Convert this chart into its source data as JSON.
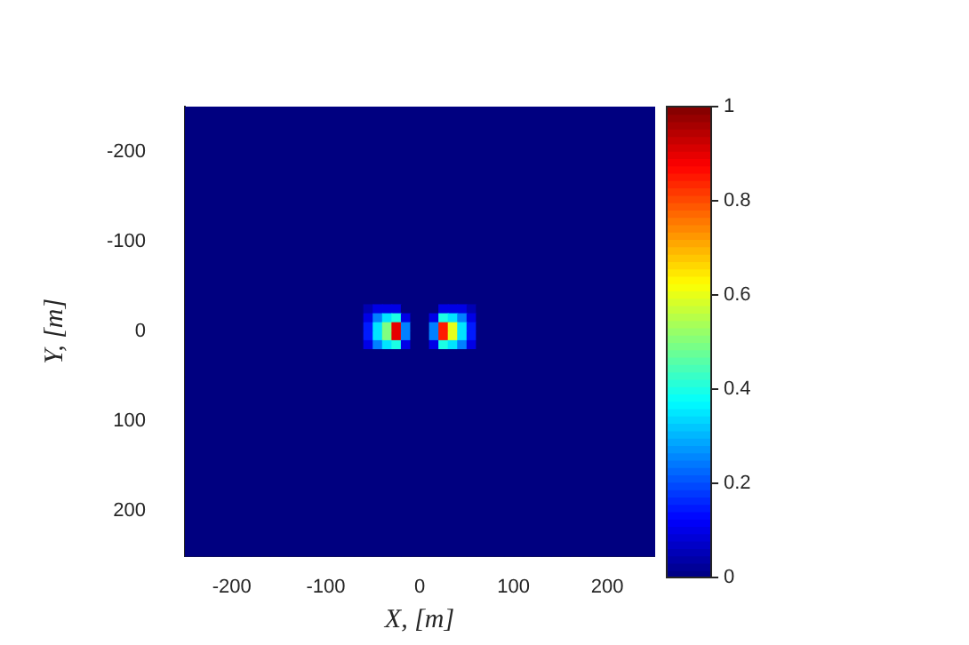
{
  "chart_data": {
    "type": "heatmap",
    "xlabel": "X, [m]",
    "ylabel": "Y, [m]",
    "x": [
      -245,
      -235,
      -225,
      -215,
      -205,
      -195,
      -185,
      -175,
      -165,
      -155,
      -145,
      -135,
      -125,
      -115,
      -105,
      -95,
      -85,
      -75,
      -65,
      -55,
      -45,
      -35,
      -25,
      -15,
      -5,
      5,
      15,
      25,
      35,
      45,
      55,
      65,
      75,
      85,
      95,
      105,
      115,
      125,
      135,
      145,
      155,
      165,
      175,
      185,
      195,
      205,
      215,
      225,
      235,
      245
    ],
    "y": [
      -245,
      -235,
      -225,
      -215,
      -205,
      -195,
      -185,
      -175,
      -165,
      -155,
      -145,
      -135,
      -125,
      -115,
      -105,
      -95,
      -85,
      -75,
      -65,
      -55,
      -45,
      -35,
      -25,
      -15,
      -5,
      5,
      15,
      25,
      35,
      45,
      55,
      65,
      75,
      85,
      95,
      105,
      115,
      125,
      135,
      145,
      155,
      165,
      175,
      185,
      195,
      205,
      215,
      225,
      235,
      245
    ],
    "xlim": [
      -250,
      250
    ],
    "xticks": [
      -200,
      -100,
      0,
      100,
      200
    ],
    "ylim": [
      250,
      -250
    ],
    "yticks": [
      -200,
      -100,
      0,
      100,
      200
    ],
    "clim": [
      0,
      1
    ],
    "cticks": [
      0,
      0.2,
      0.4,
      0.6,
      0.8,
      1
    ],
    "grid": false,
    "cells": [
      [
        0,
        0,
        0,
        0,
        0,
        0,
        0,
        0,
        0,
        0,
        0,
        0,
        0,
        0,
        0,
        0,
        0,
        0,
        0,
        0,
        0,
        0,
        0,
        0,
        0,
        0,
        0,
        0,
        0,
        0,
        0,
        0,
        0,
        0,
        0,
        0,
        0,
        0,
        0,
        0,
        0,
        0,
        0,
        0,
        0,
        0,
        0,
        0,
        0,
        0
      ],
      [
        0,
        0,
        0,
        0,
        0,
        0,
        0,
        0,
        0,
        0,
        0,
        0,
        0,
        0,
        0,
        0,
        0,
        0,
        0,
        0,
        0,
        0,
        0,
        0,
        0,
        0,
        0,
        0,
        0,
        0,
        0,
        0,
        0,
        0,
        0,
        0,
        0,
        0,
        0,
        0,
        0,
        0,
        0,
        0,
        0,
        0,
        0,
        0,
        0,
        0
      ],
      [
        0,
        0,
        0,
        0,
        0,
        0,
        0,
        0,
        0,
        0,
        0,
        0,
        0,
        0,
        0,
        0,
        0,
        0,
        0,
        0,
        0,
        0,
        0,
        0,
        0,
        0,
        0,
        0,
        0,
        0,
        0,
        0,
        0,
        0,
        0,
        0,
        0,
        0,
        0,
        0,
        0,
        0,
        0,
        0,
        0,
        0,
        0,
        0,
        0,
        0
      ],
      [
        0,
        0,
        0,
        0,
        0,
        0,
        0,
        0,
        0,
        0,
        0,
        0,
        0,
        0,
        0,
        0,
        0,
        0,
        0,
        0,
        0,
        0,
        0,
        0,
        0,
        0,
        0,
        0,
        0,
        0,
        0,
        0,
        0,
        0,
        0,
        0,
        0,
        0,
        0,
        0,
        0,
        0,
        0,
        0,
        0,
        0,
        0,
        0,
        0,
        0
      ],
      [
        0,
        0,
        0,
        0,
        0,
        0,
        0,
        0,
        0,
        0,
        0,
        0,
        0,
        0,
        0,
        0,
        0,
        0,
        0,
        0,
        0,
        0,
        0,
        0,
        0,
        0,
        0,
        0,
        0,
        0,
        0,
        0,
        0,
        0,
        0,
        0,
        0,
        0,
        0,
        0,
        0,
        0,
        0,
        0,
        0,
        0,
        0,
        0,
        0,
        0
      ],
      [
        0,
        0,
        0,
        0,
        0,
        0,
        0,
        0,
        0,
        0,
        0,
        0,
        0,
        0,
        0,
        0,
        0,
        0,
        0,
        0,
        0,
        0,
        0,
        0,
        0,
        0,
        0,
        0,
        0,
        0,
        0,
        0,
        0,
        0,
        0,
        0,
        0,
        0,
        0,
        0,
        0,
        0,
        0,
        0,
        0,
        0,
        0,
        0,
        0,
        0
      ],
      [
        0,
        0,
        0,
        0,
        0,
        0,
        0,
        0,
        0,
        0,
        0,
        0,
        0,
        0,
        0,
        0,
        0,
        0,
        0,
        0,
        0,
        0,
        0,
        0,
        0,
        0,
        0,
        0,
        0,
        0,
        0,
        0,
        0,
        0,
        0,
        0,
        0,
        0,
        0,
        0,
        0,
        0,
        0,
        0,
        0,
        0,
        0,
        0,
        0,
        0
      ],
      [
        0,
        0,
        0,
        0,
        0,
        0,
        0,
        0,
        0,
        0,
        0,
        0,
        0,
        0,
        0,
        0,
        0,
        0,
        0,
        0,
        0,
        0,
        0,
        0,
        0,
        0,
        0,
        0,
        0,
        0,
        0,
        0,
        0,
        0,
        0,
        0,
        0,
        0,
        0,
        0,
        0,
        0,
        0,
        0,
        0,
        0,
        0,
        0,
        0,
        0
      ],
      [
        0,
        0,
        0,
        0,
        0,
        0,
        0,
        0,
        0,
        0,
        0,
        0,
        0,
        0,
        0,
        0,
        0,
        0,
        0,
        0,
        0,
        0,
        0,
        0,
        0,
        0,
        0,
        0,
        0,
        0,
        0,
        0,
        0,
        0,
        0,
        0,
        0,
        0,
        0,
        0,
        0,
        0,
        0,
        0,
        0,
        0,
        0,
        0,
        0,
        0
      ],
      [
        0,
        0,
        0,
        0,
        0,
        0,
        0,
        0,
        0,
        0,
        0,
        0,
        0,
        0,
        0,
        0,
        0,
        0,
        0,
        0,
        0,
        0,
        0,
        0,
        0,
        0,
        0,
        0,
        0,
        0,
        0,
        0,
        0,
        0,
        0,
        0,
        0,
        0,
        0,
        0,
        0,
        0,
        0,
        0,
        0,
        0,
        0,
        0,
        0,
        0
      ],
      [
        0,
        0,
        0,
        0,
        0,
        0,
        0,
        0,
        0,
        0,
        0,
        0,
        0,
        0,
        0,
        0,
        0,
        0,
        0,
        0,
        0,
        0,
        0,
        0,
        0,
        0,
        0,
        0,
        0,
        0,
        0,
        0,
        0,
        0,
        0,
        0,
        0,
        0,
        0,
        0,
        0,
        0,
        0,
        0,
        0,
        0,
        0,
        0,
        0,
        0
      ],
      [
        0,
        0,
        0,
        0,
        0,
        0,
        0,
        0,
        0,
        0,
        0,
        0,
        0,
        0,
        0,
        0,
        0,
        0,
        0,
        0,
        0,
        0,
        0,
        0,
        0,
        0,
        0,
        0,
        0,
        0,
        0,
        0,
        0,
        0,
        0,
        0,
        0,
        0,
        0,
        0,
        0,
        0,
        0,
        0,
        0,
        0,
        0,
        0,
        0,
        0
      ],
      [
        0,
        0,
        0,
        0,
        0,
        0,
        0,
        0,
        0,
        0,
        0,
        0,
        0,
        0,
        0,
        0,
        0,
        0,
        0,
        0,
        0,
        0,
        0,
        0,
        0,
        0,
        0,
        0,
        0,
        0,
        0,
        0,
        0,
        0,
        0,
        0,
        0,
        0,
        0,
        0,
        0,
        0,
        0,
        0,
        0,
        0,
        0,
        0,
        0,
        0
      ],
      [
        0,
        0,
        0,
        0,
        0,
        0,
        0,
        0,
        0,
        0,
        0,
        0,
        0,
        0,
        0,
        0,
        0,
        0,
        0,
        0,
        0,
        0,
        0,
        0,
        0,
        0,
        0,
        0,
        0,
        0,
        0,
        0,
        0,
        0,
        0,
        0,
        0,
        0,
        0,
        0,
        0,
        0,
        0,
        0,
        0,
        0,
        0,
        0,
        0,
        0
      ],
      [
        0,
        0,
        0,
        0,
        0,
        0,
        0,
        0,
        0,
        0,
        0,
        0,
        0,
        0,
        0,
        0,
        0,
        0,
        0,
        0,
        0,
        0,
        0,
        0,
        0,
        0,
        0,
        0,
        0,
        0,
        0,
        0,
        0,
        0,
        0,
        0,
        0,
        0,
        0,
        0,
        0,
        0,
        0,
        0,
        0,
        0,
        0,
        0,
        0,
        0
      ],
      [
        0,
        0,
        0,
        0,
        0,
        0,
        0,
        0,
        0,
        0,
        0,
        0,
        0,
        0,
        0,
        0,
        0,
        0,
        0,
        0,
        0,
        0,
        0,
        0,
        0,
        0,
        0,
        0,
        0,
        0,
        0,
        0,
        0,
        0,
        0,
        0,
        0,
        0,
        0,
        0,
        0,
        0,
        0,
        0,
        0,
        0,
        0,
        0,
        0,
        0
      ],
      [
        0,
        0,
        0,
        0,
        0,
        0,
        0,
        0,
        0,
        0,
        0,
        0,
        0,
        0,
        0,
        0,
        0,
        0,
        0,
        0,
        0,
        0,
        0,
        0,
        0,
        0,
        0,
        0,
        0,
        0,
        0,
        0,
        0,
        0,
        0,
        0,
        0,
        0,
        0,
        0,
        0,
        0,
        0,
        0,
        0,
        0,
        0,
        0,
        0,
        0
      ],
      [
        0,
        0,
        0,
        0,
        0,
        0,
        0,
        0,
        0,
        0,
        0,
        0,
        0,
        0,
        0,
        0,
        0,
        0,
        0,
        0,
        0,
        0,
        0,
        0,
        0,
        0,
        0,
        0,
        0,
        0,
        0,
        0,
        0,
        0,
        0,
        0,
        0,
        0,
        0,
        0,
        0,
        0,
        0,
        0,
        0,
        0,
        0,
        0,
        0,
        0
      ],
      [
        0,
        0,
        0,
        0,
        0,
        0,
        0,
        0,
        0,
        0,
        0,
        0,
        0,
        0,
        0,
        0,
        0,
        0,
        0,
        0,
        0,
        0,
        0,
        0,
        0,
        0,
        0,
        0,
        0,
        0,
        0,
        0,
        0,
        0,
        0,
        0,
        0,
        0,
        0,
        0,
        0,
        0,
        0,
        0,
        0,
        0,
        0,
        0,
        0,
        0
      ],
      [
        0,
        0,
        0,
        0,
        0,
        0,
        0,
        0,
        0,
        0,
        0,
        0,
        0,
        0,
        0,
        0,
        0,
        0,
        0,
        0,
        0,
        0,
        0,
        0,
        0,
        0,
        0,
        0,
        0,
        0,
        0,
        0,
        0,
        0,
        0,
        0,
        0,
        0,
        0,
        0,
        0,
        0,
        0,
        0,
        0,
        0,
        0,
        0,
        0,
        0
      ],
      [
        0,
        0,
        0,
        0,
        0,
        0,
        0,
        0,
        0,
        0,
        0,
        0,
        0,
        0,
        0,
        0,
        0,
        0,
        0,
        0,
        0,
        0,
        0,
        0,
        0,
        0,
        0,
        0,
        0,
        0,
        0,
        0,
        0,
        0,
        0,
        0,
        0,
        0,
        0,
        0,
        0,
        0,
        0,
        0,
        0,
        0,
        0,
        0,
        0,
        0
      ],
      [
        0,
        0,
        0,
        0,
        0,
        0,
        0,
        0,
        0,
        0,
        0,
        0,
        0,
        0,
        0,
        0,
        0,
        0,
        0,
        0,
        0,
        0,
        0,
        0,
        0,
        0,
        0,
        0,
        0,
        0,
        0,
        0,
        0,
        0,
        0,
        0,
        0,
        0,
        0,
        0,
        0,
        0,
        0,
        0,
        0,
        0,
        0,
        0,
        0,
        0
      ],
      [
        0,
        0,
        0,
        0,
        0,
        0,
        0,
        0,
        0,
        0,
        0,
        0,
        0,
        0,
        0,
        0,
        0,
        0,
        0,
        0.05,
        0.1,
        0.1,
        0.1,
        0,
        0,
        0,
        0,
        0.1,
        0.1,
        0.1,
        0.05,
        0,
        0,
        0,
        0,
        0,
        0,
        0,
        0,
        0,
        0,
        0,
        0,
        0,
        0,
        0,
        0,
        0,
        0,
        0
      ],
      [
        0,
        0,
        0,
        0,
        0,
        0,
        0,
        0,
        0,
        0,
        0,
        0,
        0,
        0,
        0,
        0,
        0,
        0,
        0,
        0.1,
        0.25,
        0.35,
        0.4,
        0.1,
        0,
        0,
        0.1,
        0.4,
        0.35,
        0.25,
        0.1,
        0,
        0,
        0,
        0,
        0,
        0,
        0,
        0,
        0,
        0,
        0,
        0,
        0,
        0,
        0,
        0,
        0,
        0,
        0
      ],
      [
        0,
        0,
        0,
        0,
        0,
        0,
        0,
        0,
        0,
        0,
        0,
        0,
        0,
        0,
        0,
        0,
        0,
        0,
        0,
        0.15,
        0.35,
        0.5,
        0.9,
        0.25,
        0,
        0,
        0.25,
        0.85,
        0.6,
        0.35,
        0.15,
        0,
        0,
        0,
        0,
        0,
        0,
        0,
        0,
        0,
        0,
        0,
        0,
        0,
        0,
        0,
        0,
        0,
        0,
        0
      ],
      [
        0,
        0,
        0,
        0,
        0,
        0,
        0,
        0,
        0,
        0,
        0,
        0,
        0,
        0,
        0,
        0,
        0,
        0,
        0,
        0.15,
        0.35,
        0.5,
        0.9,
        0.25,
        0,
        0,
        0.25,
        0.85,
        0.6,
        0.35,
        0.15,
        0,
        0,
        0,
        0,
        0,
        0,
        0,
        0,
        0,
        0,
        0,
        0,
        0,
        0,
        0,
        0,
        0,
        0,
        0
      ],
      [
        0,
        0,
        0,
        0,
        0,
        0,
        0,
        0,
        0,
        0,
        0,
        0,
        0,
        0,
        0,
        0,
        0,
        0,
        0,
        0.1,
        0.25,
        0.35,
        0.4,
        0.1,
        0,
        0,
        0.1,
        0.4,
        0.35,
        0.25,
        0.1,
        0,
        0,
        0,
        0,
        0,
        0,
        0,
        0,
        0,
        0,
        0,
        0,
        0,
        0,
        0,
        0,
        0,
        0,
        0
      ],
      [
        0,
        0,
        0,
        0,
        0,
        0,
        0,
        0,
        0,
        0,
        0,
        0,
        0,
        0,
        0,
        0,
        0,
        0,
        0,
        0,
        0,
        0,
        0,
        0,
        0,
        0,
        0,
        0,
        0,
        0,
        0,
        0,
        0,
        0,
        0,
        0,
        0,
        0,
        0,
        0,
        0,
        0,
        0,
        0,
        0,
        0,
        0,
        0,
        0,
        0
      ],
      [
        0,
        0,
        0,
        0,
        0,
        0,
        0,
        0,
        0,
        0,
        0,
        0,
        0,
        0,
        0,
        0,
        0,
        0,
        0,
        0,
        0,
        0,
        0,
        0,
        0,
        0,
        0,
        0,
        0,
        0,
        0,
        0,
        0,
        0,
        0,
        0,
        0,
        0,
        0,
        0,
        0,
        0,
        0,
        0,
        0,
        0,
        0,
        0,
        0,
        0
      ],
      [
        0,
        0,
        0,
        0,
        0,
        0,
        0,
        0,
        0,
        0,
        0,
        0,
        0,
        0,
        0,
        0,
        0,
        0,
        0,
        0,
        0,
        0,
        0,
        0,
        0,
        0,
        0,
        0,
        0,
        0,
        0,
        0,
        0,
        0,
        0,
        0,
        0,
        0,
        0,
        0,
        0,
        0,
        0,
        0,
        0,
        0,
        0,
        0,
        0,
        0
      ],
      [
        0,
        0,
        0,
        0,
        0,
        0,
        0,
        0,
        0,
        0,
        0,
        0,
        0,
        0,
        0,
        0,
        0,
        0,
        0,
        0,
        0,
        0,
        0,
        0,
        0,
        0,
        0,
        0,
        0,
        0,
        0,
        0,
        0,
        0,
        0,
        0,
        0,
        0,
        0,
        0,
        0,
        0,
        0,
        0,
        0,
        0,
        0,
        0,
        0,
        0
      ],
      [
        0,
        0,
        0,
        0,
        0,
        0,
        0,
        0,
        0,
        0,
        0,
        0,
        0,
        0,
        0,
        0,
        0,
        0,
        0,
        0,
        0,
        0,
        0,
        0,
        0,
        0,
        0,
        0,
        0,
        0,
        0,
        0,
        0,
        0,
        0,
        0,
        0,
        0,
        0,
        0,
        0,
        0,
        0,
        0,
        0,
        0,
        0,
        0,
        0,
        0
      ],
      [
        0,
        0,
        0,
        0,
        0,
        0,
        0,
        0,
        0,
        0,
        0,
        0,
        0,
        0,
        0,
        0,
        0,
        0,
        0,
        0,
        0,
        0,
        0,
        0,
        0,
        0,
        0,
        0,
        0,
        0,
        0,
        0,
        0,
        0,
        0,
        0,
        0,
        0,
        0,
        0,
        0,
        0,
        0,
        0,
        0,
        0,
        0,
        0,
        0,
        0
      ],
      [
        0,
        0,
        0,
        0,
        0,
        0,
        0,
        0,
        0,
        0,
        0,
        0,
        0,
        0,
        0,
        0,
        0,
        0,
        0,
        0,
        0,
        0,
        0,
        0,
        0,
        0,
        0,
        0,
        0,
        0,
        0,
        0,
        0,
        0,
        0,
        0,
        0,
        0,
        0,
        0,
        0,
        0,
        0,
        0,
        0,
        0,
        0,
        0,
        0,
        0
      ],
      [
        0,
        0,
        0,
        0,
        0,
        0,
        0,
        0,
        0,
        0,
        0,
        0,
        0,
        0,
        0,
        0,
        0,
        0,
        0,
        0,
        0,
        0,
        0,
        0,
        0,
        0,
        0,
        0,
        0,
        0,
        0,
        0,
        0,
        0,
        0,
        0,
        0,
        0,
        0,
        0,
        0,
        0,
        0,
        0,
        0,
        0,
        0,
        0,
        0,
        0
      ],
      [
        0,
        0,
        0,
        0,
        0,
        0,
        0,
        0,
        0,
        0,
        0,
        0,
        0,
        0,
        0,
        0,
        0,
        0,
        0,
        0,
        0,
        0,
        0,
        0,
        0,
        0,
        0,
        0,
        0,
        0,
        0,
        0,
        0,
        0,
        0,
        0,
        0,
        0,
        0,
        0,
        0,
        0,
        0,
        0,
        0,
        0,
        0,
        0,
        0,
        0
      ],
      [
        0,
        0,
        0,
        0,
        0,
        0,
        0,
        0,
        0,
        0,
        0,
        0,
        0,
        0,
        0,
        0,
        0,
        0,
        0,
        0,
        0,
        0,
        0,
        0,
        0,
        0,
        0,
        0,
        0,
        0,
        0,
        0,
        0,
        0,
        0,
        0,
        0,
        0,
        0,
        0,
        0,
        0,
        0,
        0,
        0,
        0,
        0,
        0,
        0,
        0
      ],
      [
        0,
        0,
        0,
        0,
        0,
        0,
        0,
        0,
        0,
        0,
        0,
        0,
        0,
        0,
        0,
        0,
        0,
        0,
        0,
        0,
        0,
        0,
        0,
        0,
        0,
        0,
        0,
        0,
        0,
        0,
        0,
        0,
        0,
        0,
        0,
        0,
        0,
        0,
        0,
        0,
        0,
        0,
        0,
        0,
        0,
        0,
        0,
        0,
        0,
        0
      ],
      [
        0,
        0,
        0,
        0,
        0,
        0,
        0,
        0,
        0,
        0,
        0,
        0,
        0,
        0,
        0,
        0,
        0,
        0,
        0,
        0,
        0,
        0,
        0,
        0,
        0,
        0,
        0,
        0,
        0,
        0,
        0,
        0,
        0,
        0,
        0,
        0,
        0,
        0,
        0,
        0,
        0,
        0,
        0,
        0,
        0,
        0,
        0,
        0,
        0,
        0
      ],
      [
        0,
        0,
        0,
        0,
        0,
        0,
        0,
        0,
        0,
        0,
        0,
        0,
        0,
        0,
        0,
        0,
        0,
        0,
        0,
        0,
        0,
        0,
        0,
        0,
        0,
        0,
        0,
        0,
        0,
        0,
        0,
        0,
        0,
        0,
        0,
        0,
        0,
        0,
        0,
        0,
        0,
        0,
        0,
        0,
        0,
        0,
        0,
        0,
        0,
        0
      ],
      [
        0,
        0,
        0,
        0,
        0,
        0,
        0,
        0,
        0,
        0,
        0,
        0,
        0,
        0,
        0,
        0,
        0,
        0,
        0,
        0,
        0,
        0,
        0,
        0,
        0,
        0,
        0,
        0,
        0,
        0,
        0,
        0,
        0,
        0,
        0,
        0,
        0,
        0,
        0,
        0,
        0,
        0,
        0,
        0,
        0,
        0,
        0,
        0,
        0,
        0
      ],
      [
        0,
        0,
        0,
        0,
        0,
        0,
        0,
        0,
        0,
        0,
        0,
        0,
        0,
        0,
        0,
        0,
        0,
        0,
        0,
        0,
        0,
        0,
        0,
        0,
        0,
        0,
        0,
        0,
        0,
        0,
        0,
        0,
        0,
        0,
        0,
        0,
        0,
        0,
        0,
        0,
        0,
        0,
        0,
        0,
        0,
        0,
        0,
        0,
        0,
        0
      ],
      [
        0,
        0,
        0,
        0,
        0,
        0,
        0,
        0,
        0,
        0,
        0,
        0,
        0,
        0,
        0,
        0,
        0,
        0,
        0,
        0,
        0,
        0,
        0,
        0,
        0,
        0,
        0,
        0,
        0,
        0,
        0,
        0,
        0,
        0,
        0,
        0,
        0,
        0,
        0,
        0,
        0,
        0,
        0,
        0,
        0,
        0,
        0,
        0,
        0,
        0
      ],
      [
        0,
        0,
        0,
        0,
        0,
        0,
        0,
        0,
        0,
        0,
        0,
        0,
        0,
        0,
        0,
        0,
        0,
        0,
        0,
        0,
        0,
        0,
        0,
        0,
        0,
        0,
        0,
        0,
        0,
        0,
        0,
        0,
        0,
        0,
        0,
        0,
        0,
        0,
        0,
        0,
        0,
        0,
        0,
        0,
        0,
        0,
        0,
        0,
        0,
        0
      ],
      [
        0,
        0,
        0,
        0,
        0,
        0,
        0,
        0,
        0,
        0,
        0,
        0,
        0,
        0,
        0,
        0,
        0,
        0,
        0,
        0,
        0,
        0,
        0,
        0,
        0,
        0,
        0,
        0,
        0,
        0,
        0,
        0,
        0,
        0,
        0,
        0,
        0,
        0,
        0,
        0,
        0,
        0,
        0,
        0,
        0,
        0,
        0,
        0,
        0,
        0
      ],
      [
        0,
        0,
        0,
        0,
        0,
        0,
        0,
        0,
        0,
        0,
        0,
        0,
        0,
        0,
        0,
        0,
        0,
        0,
        0,
        0,
        0,
        0,
        0,
        0,
        0,
        0,
        0,
        0,
        0,
        0,
        0,
        0,
        0,
        0,
        0,
        0,
        0,
        0,
        0,
        0,
        0,
        0,
        0,
        0,
        0,
        0,
        0,
        0,
        0,
        0
      ],
      [
        0,
        0,
        0,
        0,
        0,
        0,
        0,
        0,
        0,
        0,
        0,
        0,
        0,
        0,
        0,
        0,
        0,
        0,
        0,
        0,
        0,
        0,
        0,
        0,
        0,
        0,
        0,
        0,
        0,
        0,
        0,
        0,
        0,
        0,
        0,
        0,
        0,
        0,
        0,
        0,
        0,
        0,
        0,
        0,
        0,
        0,
        0,
        0,
        0,
        0
      ],
      [
        0,
        0,
        0,
        0,
        0,
        0,
        0,
        0,
        0,
        0,
        0,
        0,
        0,
        0,
        0,
        0,
        0,
        0,
        0,
        0,
        0,
        0,
        0,
        0,
        0,
        0,
        0,
        0,
        0,
        0,
        0,
        0,
        0,
        0,
        0,
        0,
        0,
        0,
        0,
        0,
        0,
        0,
        0,
        0,
        0,
        0,
        0,
        0,
        0,
        0
      ],
      [
        0,
        0,
        0,
        0,
        0,
        0,
        0,
        0,
        0,
        0,
        0,
        0,
        0,
        0,
        0,
        0,
        0,
        0,
        0,
        0,
        0,
        0,
        0,
        0,
        0,
        0,
        0,
        0,
        0,
        0,
        0,
        0,
        0,
        0,
        0,
        0,
        0,
        0,
        0,
        0,
        0,
        0,
        0,
        0,
        0,
        0,
        0,
        0,
        0,
        0
      ],
      [
        0,
        0,
        0,
        0,
        0,
        0,
        0,
        0,
        0,
        0,
        0,
        0,
        0,
        0,
        0,
        0,
        0,
        0,
        0,
        0,
        0,
        0,
        0,
        0,
        0,
        0,
        0,
        0,
        0,
        0,
        0,
        0,
        0,
        0,
        0,
        0,
        0,
        0,
        0,
        0,
        0,
        0,
        0,
        0,
        0,
        0,
        0,
        0,
        0,
        0
      ]
    ]
  }
}
